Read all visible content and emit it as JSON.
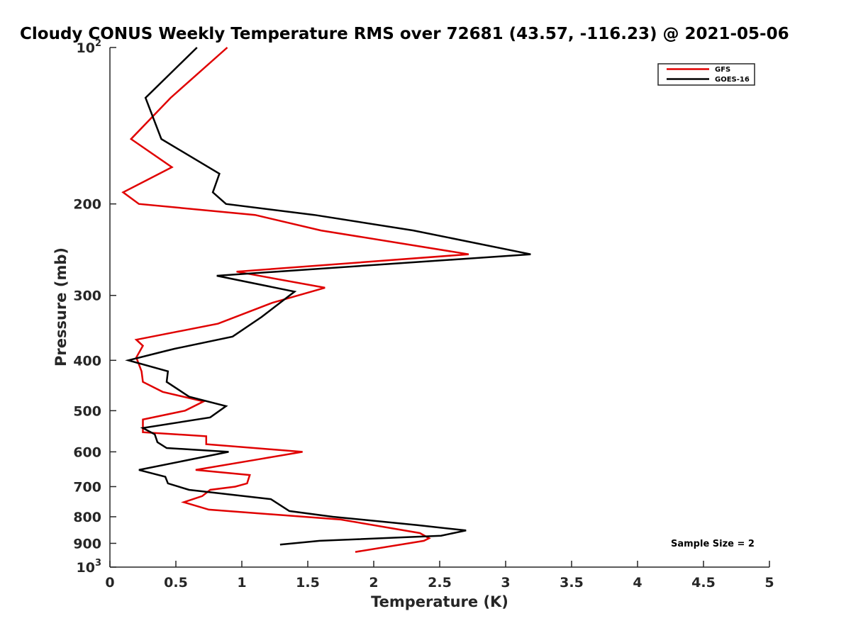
{
  "chart_data": {
    "type": "line",
    "title": "Cloudy CONUS Weekly Temperature RMS over 72681 (43.57, -116.23) @ 2021-05-06",
    "xlabel": "Temperature (K)",
    "ylabel": "Pressure (mb)",
    "xlim": [
      0,
      5
    ],
    "ylim": [
      100,
      1000
    ],
    "y_scale": "log",
    "y_reversed": true,
    "x_ticks": [
      "0",
      "0.5",
      "1",
      "1.5",
      "2",
      "2.5",
      "3",
      "3.5",
      "4",
      "4.5",
      "5"
    ],
    "y_ticks": [
      {
        "value": 100,
        "base": "10",
        "exp": "2"
      },
      {
        "value": 200,
        "label": "200"
      },
      {
        "value": 300,
        "label": "300"
      },
      {
        "value": 400,
        "label": "400"
      },
      {
        "value": 500,
        "label": "500"
      },
      {
        "value": 600,
        "label": "600"
      },
      {
        "value": 700,
        "label": "700"
      },
      {
        "value": 800,
        "label": "800"
      },
      {
        "value": 900,
        "label": "900"
      },
      {
        "value": 1000,
        "base": "10",
        "exp": "3"
      }
    ],
    "grid": false,
    "legend_position": "top-right",
    "annotation": "Sample Size = 2",
    "series": [
      {
        "name": "GFS",
        "color": "#e00000",
        "points": [
          [
            0.89,
            100
          ],
          [
            0.46,
            125
          ],
          [
            0.16,
            150
          ],
          [
            0.47,
            170
          ],
          [
            0.1,
            190
          ],
          [
            0.22,
            200
          ],
          [
            1.1,
            210
          ],
          [
            1.6,
            225
          ],
          [
            2.72,
            250
          ],
          [
            0.96,
            270
          ],
          [
            1.63,
            290
          ],
          [
            1.23,
            310
          ],
          [
            0.82,
            340
          ],
          [
            0.2,
            365
          ],
          [
            0.25,
            375
          ],
          [
            0.2,
            395
          ],
          [
            0.24,
            420
          ],
          [
            0.25,
            440
          ],
          [
            0.4,
            460
          ],
          [
            0.71,
            480
          ],
          [
            0.57,
            500
          ],
          [
            0.25,
            520
          ],
          [
            0.25,
            550
          ],
          [
            0.73,
            560
          ],
          [
            0.73,
            580
          ],
          [
            1.46,
            600
          ],
          [
            1.13,
            620
          ],
          [
            0.65,
            650
          ],
          [
            1.06,
            665
          ],
          [
            1.04,
            690
          ],
          [
            0.95,
            700
          ],
          [
            0.76,
            710
          ],
          [
            0.7,
            730
          ],
          [
            0.56,
            750
          ],
          [
            0.75,
            775
          ],
          [
            1.75,
            810
          ],
          [
            2.35,
            860
          ],
          [
            2.42,
            880
          ],
          [
            2.38,
            890
          ],
          [
            1.86,
            935
          ]
        ]
      },
      {
        "name": "GOES-16",
        "color": "#000000",
        "points": [
          [
            0.66,
            100
          ],
          [
            0.27,
            125
          ],
          [
            0.39,
            150
          ],
          [
            0.83,
            175
          ],
          [
            0.78,
            190
          ],
          [
            0.88,
            200
          ],
          [
            1.55,
            210
          ],
          [
            2.3,
            225
          ],
          [
            3.19,
            250
          ],
          [
            0.81,
            275
          ],
          [
            1.4,
            295
          ],
          [
            1.15,
            330
          ],
          [
            0.93,
            360
          ],
          [
            0.49,
            380
          ],
          [
            0.4,
            385
          ],
          [
            0.14,
            400
          ],
          [
            0.44,
            420
          ],
          [
            0.43,
            440
          ],
          [
            0.6,
            470
          ],
          [
            0.88,
            490
          ],
          [
            0.76,
            515
          ],
          [
            0.25,
            540
          ],
          [
            0.34,
            555
          ],
          [
            0.36,
            575
          ],
          [
            0.43,
            590
          ],
          [
            0.9,
            600
          ],
          [
            0.22,
            650
          ],
          [
            0.42,
            670
          ],
          [
            0.44,
            690
          ],
          [
            0.6,
            710
          ],
          [
            1.22,
            740
          ],
          [
            1.36,
            780
          ],
          [
            1.69,
            800
          ],
          [
            2.33,
            830
          ],
          [
            2.7,
            850
          ],
          [
            2.51,
            870
          ],
          [
            1.59,
            890
          ],
          [
            1.29,
            905
          ]
        ]
      }
    ]
  }
}
